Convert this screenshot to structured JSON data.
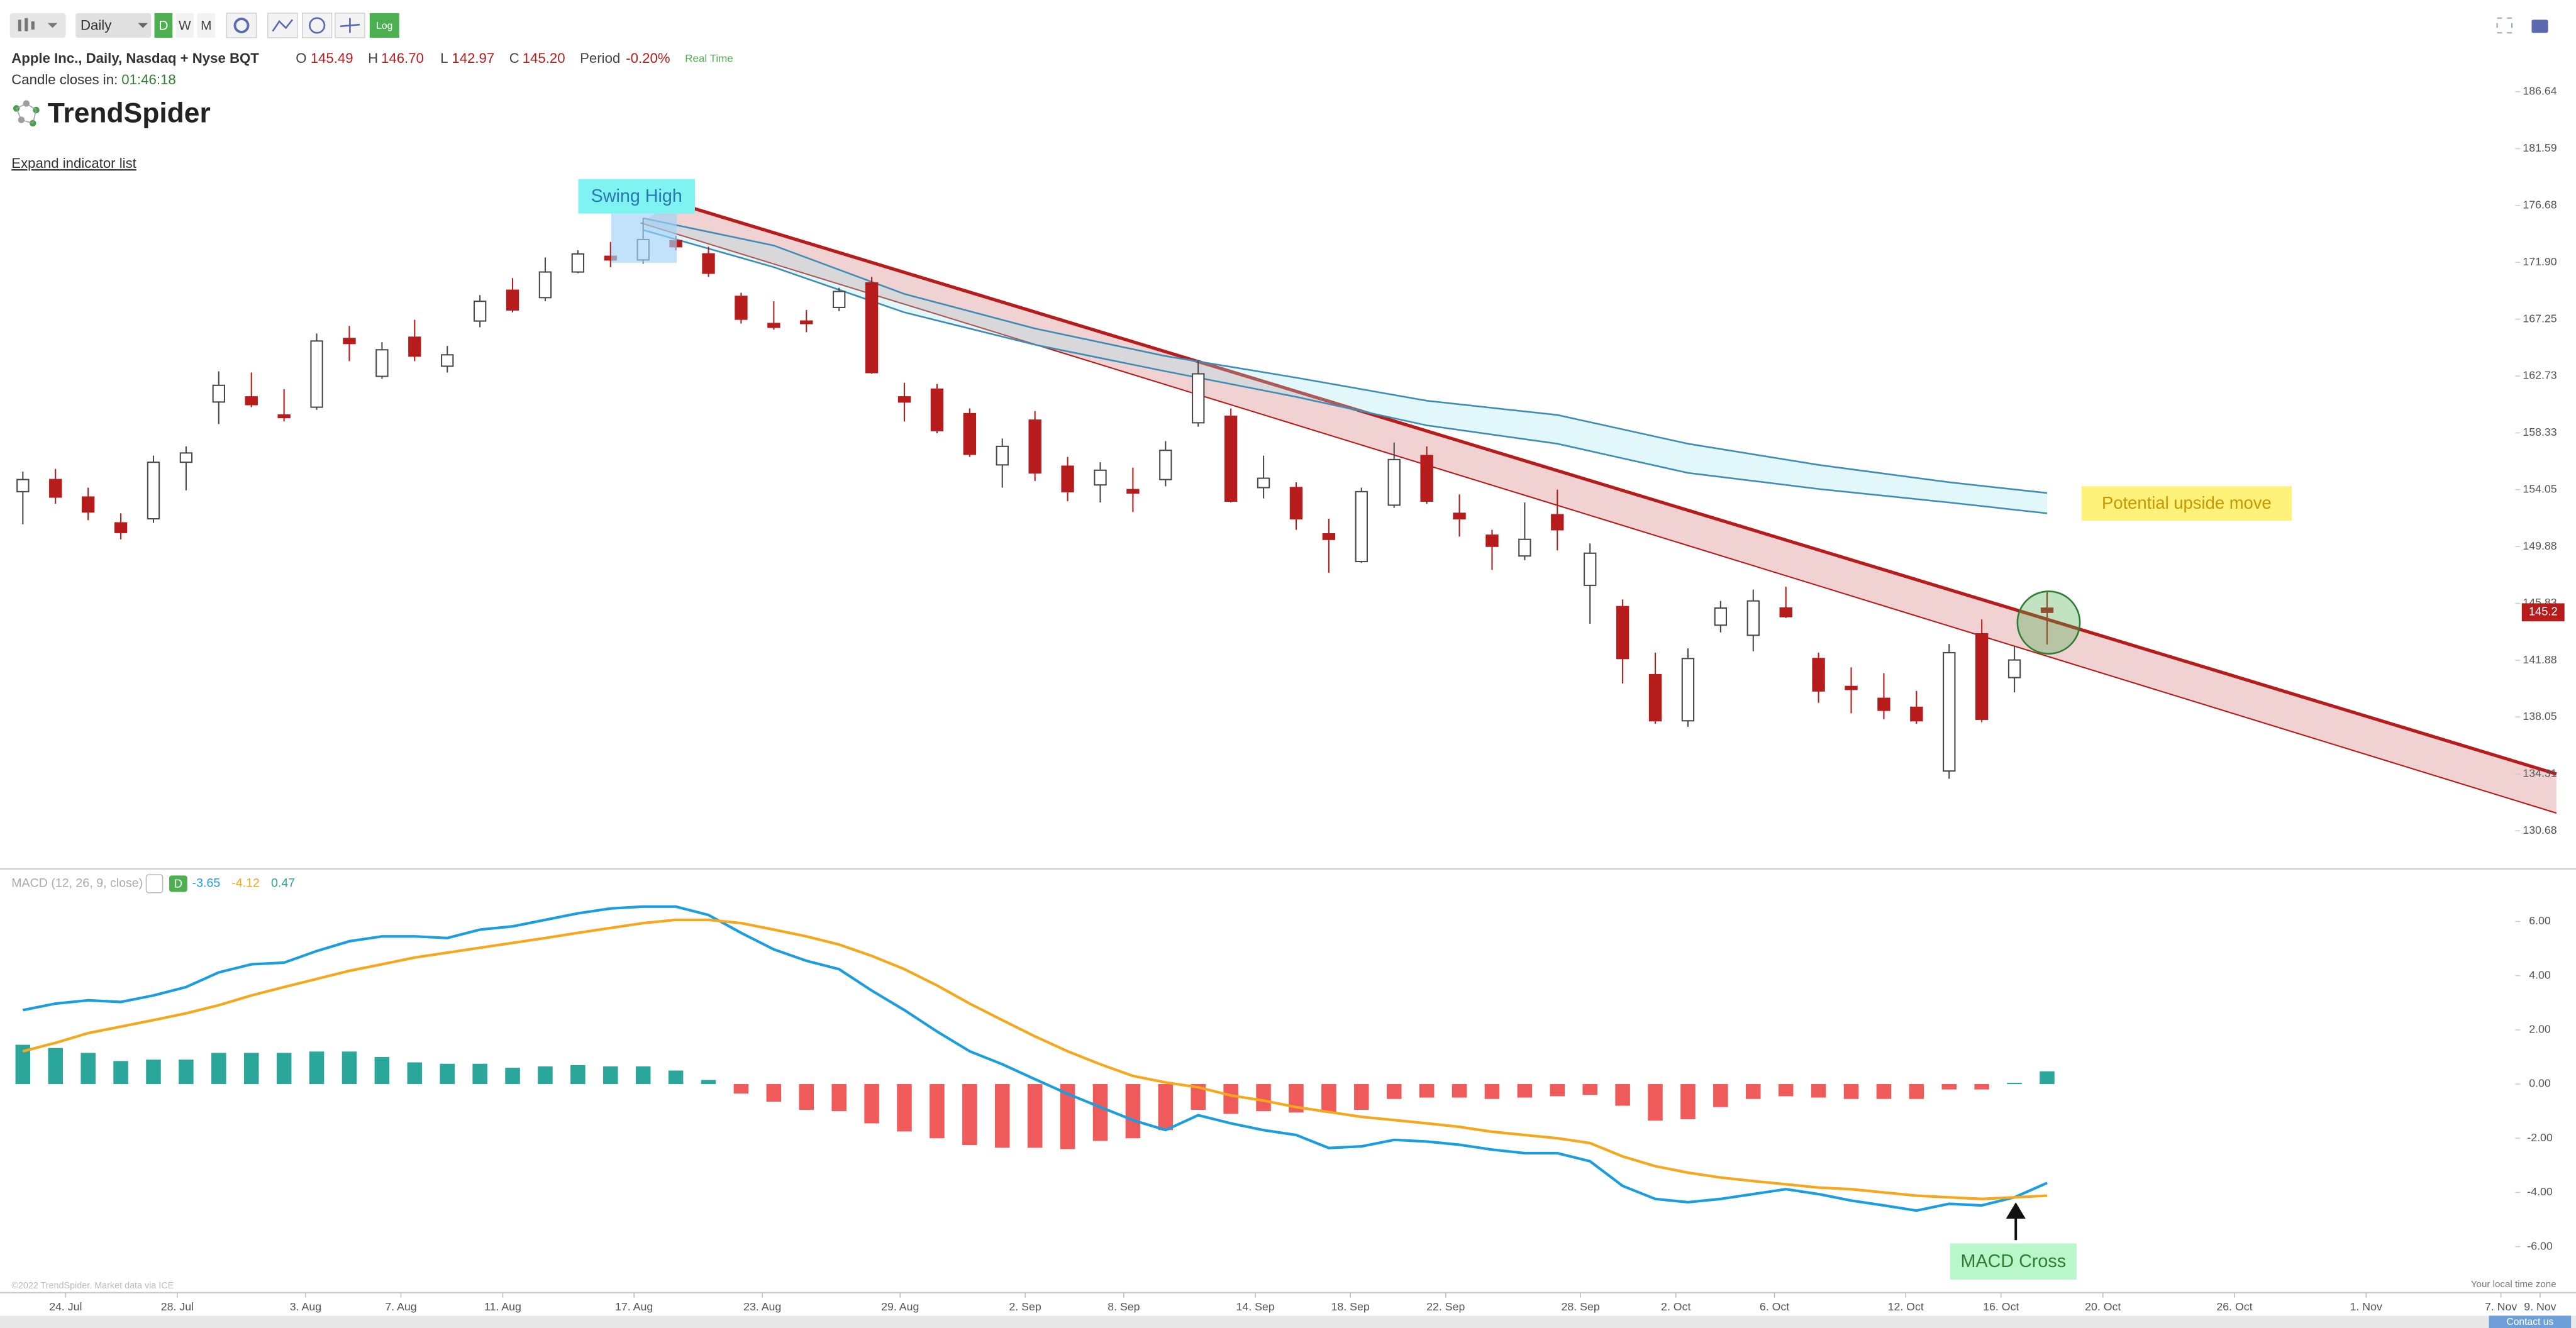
{
  "toolbar": {
    "interval": "Daily",
    "buttons": [
      "D",
      "W",
      "M"
    ],
    "log_button": "Log"
  },
  "header": {
    "symbol": "Apple Inc., Daily, Nasdaq + Nyse BQT",
    "ohlc": [
      {
        "key": "O",
        "value": "145.49"
      },
      {
        "key": "H",
        "value": "146.70"
      },
      {
        "key": "L",
        "value": "142.97"
      },
      {
        "key": "C",
        "value": "145.20"
      }
    ],
    "period_label": "Period",
    "period_value": "-0.20%",
    "realtime": "Real Time",
    "countdown_label": "Candle closes in:",
    "countdown": "01:46:18",
    "brand": "TrendSpider",
    "expand": "Expand indicator list"
  },
  "annotations": {
    "swing_high": "Swing High",
    "upside": "Potential upside move",
    "macd_cross": "MACD Cross"
  },
  "chart_data": [
    {
      "type": "candlestick",
      "log": true,
      "grid": false,
      "open": [
        153.9,
        154.8,
        153.5,
        151.6,
        151.9,
        156.1,
        160.7,
        161.1,
        159.7,
        160.3,
        165.7,
        162.7,
        165.8,
        163.5,
        167.1,
        169.6,
        169.0,
        171.1,
        172.4,
        172.1,
        173.7,
        172.6,
        169.1,
        166.9,
        167.1,
        168.2,
        170.2,
        161.1,
        161.7,
        159.8,
        155.9,
        159.3,
        155.8,
        154.4,
        154.05,
        154.8,
        159.1,
        159.6,
        154.2,
        154.2,
        150.8,
        148.8,
        152.9,
        156.6,
        152.3,
        150.7,
        149.2,
        152.2,
        147.1,
        145.6,
        140.9,
        137.8,
        144.3,
        143.6,
        145.5,
        142.0,
        140.1,
        139.3,
        138.7,
        134.5,
        143.7,
        140.7,
        145.49
      ],
      "high": [
        155.4,
        155.6,
        154.2,
        152.3,
        156.6,
        157.3,
        163.1,
        163.0,
        161.7,
        166.1,
        166.7,
        165.4,
        167.2,
        165.1,
        169.2,
        170.6,
        172.3,
        172.9,
        173.6,
        175.6,
        174.1,
        173.2,
        169.4,
        168.7,
        168.0,
        169.8,
        170.7,
        162.2,
        162.1,
        160.2,
        157.9,
        160.0,
        156.5,
        156.1,
        155.7,
        157.7,
        164.0,
        160.2,
        156.6,
        154.6,
        151.9,
        154.2,
        157.6,
        157.3,
        153.7,
        151.1,
        153.1,
        154.05,
        150.1,
        146.1,
        142.4,
        142.7,
        146.0,
        146.8,
        147.0,
        142.4,
        141.4,
        141.0,
        139.8,
        143.0,
        144.7,
        142.9,
        146.7
      ],
      "low": [
        151.5,
        153.0,
        151.8,
        150.4,
        151.6,
        154.0,
        159.0,
        160.3,
        159.2,
        160.1,
        163.9,
        162.5,
        163.9,
        163.0,
        166.6,
        167.8,
        168.7,
        171.0,
        171.5,
        171.8,
        172.9,
        170.7,
        166.9,
        166.4,
        166.2,
        167.9,
        162.9,
        159.2,
        158.3,
        156.5,
        154.2,
        154.7,
        153.2,
        153.1,
        152.4,
        154.3,
        158.8,
        153.1,
        153.4,
        151.1,
        148.0,
        148.7,
        152.7,
        153.0,
        150.6,
        148.2,
        148.9,
        149.6,
        144.4,
        140.3,
        137.6,
        137.4,
        143.8,
        142.5,
        144.8,
        139.0,
        138.3,
        137.9,
        137.6,
        134.0,
        137.7,
        139.7,
        142.97
      ],
      "close": [
        154.8,
        153.5,
        152.4,
        150.9,
        156.1,
        156.8,
        162.0,
        160.5,
        159.5,
        165.5,
        165.3,
        164.8,
        164.3,
        164.4,
        168.7,
        168.0,
        171.1,
        172.6,
        172.1,
        173.8,
        173.2,
        171.0,
        167.25,
        166.6,
        166.9,
        169.5,
        163.0,
        160.7,
        158.5,
        156.7,
        157.3,
        155.3,
        153.9,
        155.5,
        153.8,
        157.0,
        162.9,
        153.2,
        154.9,
        151.9,
        150.4,
        153.9,
        156.3,
        153.2,
        151.9,
        149.9,
        150.4,
        151.1,
        149.4,
        142.0,
        137.8,
        142.0,
        145.5,
        146.0,
        144.9,
        139.8,
        139.9,
        138.5,
        137.8,
        142.4,
        137.9,
        141.9,
        145.2
      ],
      "up_color": "#ffffff",
      "down_color": "#b71c1c",
      "xlim": [
        -0.7,
        78.2
      ],
      "ylim": [
        128.4,
        189.0
      ],
      "yticks": [
        186.64,
        181.59,
        176.68,
        {
          "value": 171.9,
          "label": "171.90"
        },
        167.25,
        162.73,
        158.33,
        154.05,
        149.88,
        145.83,
        141.88,
        138.05,
        134.31,
        130.68
      ],
      "last_price": {
        "value": 145.2,
        "label": "145.2"
      },
      "trendlines": [
        {
          "x": [
            19.93,
            77.6
          ],
          "y": [
            176.95,
            134.31
          ]
        },
        {
          "x": [
            18.92,
            77.6
          ],
          "y": [
            175.2,
            131.8
          ]
        }
      ],
      "channel_color": "#b71c1c",
      "bands": [
        {
          "x": [
            19,
            23,
            27,
            31,
            35,
            39,
            43,
            47,
            51,
            55,
            59,
            62
          ],
          "values": [
            175.6,
            173.3,
            169.3,
            166.5,
            164.3,
            162.6,
            160.8,
            159.7,
            157.5,
            155.9,
            154.6,
            153.8
          ]
        },
        {
          "x": [
            19,
            23,
            27,
            31,
            35,
            39,
            43,
            47,
            51,
            55,
            59,
            62
          ],
          "values": [
            174.6,
            171.5,
            167.8,
            165.2,
            163.1,
            161.1,
            158.9,
            157.5,
            155.3,
            154.1,
            153.1,
            152.3
          ]
        }
      ],
      "band_color": "#3f8db5"
    },
    {
      "type": "macd",
      "title": "MACD (12, 26, 9, close)",
      "badge": "D",
      "readouts": [
        "-3.65",
        "-4.12",
        "0.47"
      ],
      "series": [
        {
          "color": "#1a9ee0",
          "values": [
            2.73,
            2.97,
            3.09,
            3.03,
            3.27,
            3.58,
            4.12,
            4.42,
            4.48,
            4.91,
            5.27,
            5.45,
            5.45,
            5.39,
            5.7,
            5.82,
            6.06,
            6.3,
            6.48,
            6.55,
            6.55,
            6.24,
            5.58,
            4.97,
            4.55,
            4.24,
            3.45,
            2.73,
            1.94,
            1.21,
            0.73,
            0.18,
            -0.36,
            -0.85,
            -1.33,
            -1.7,
            -1.15,
            -1.45,
            -1.7,
            -1.88,
            -2.36,
            -2.3,
            -2.06,
            -2.12,
            -2.24,
            -2.42,
            -2.55,
            -2.55,
            -2.85,
            -3.76,
            -4.24,
            -4.36,
            -4.24,
            -4.06,
            -3.88,
            -4.06,
            -4.3,
            -4.48,
            -4.67,
            -4.42,
            -4.48,
            -4.18,
            -3.65
          ]
        },
        {
          "color": "#f5a81c",
          "values": [
            1.21,
            1.52,
            1.88,
            2.12,
            2.36,
            2.61,
            2.91,
            3.27,
            3.58,
            3.88,
            4.18,
            4.42,
            4.67,
            4.85,
            5.03,
            5.21,
            5.39,
            5.58,
            5.76,
            5.94,
            6.06,
            6.06,
            5.94,
            5.7,
            5.45,
            5.15,
            4.73,
            4.24,
            3.64,
            2.97,
            2.36,
            1.76,
            1.21,
            0.73,
            0.3,
            0.06,
            -0.12,
            -0.42,
            -0.61,
            -0.85,
            -1.03,
            -1.21,
            -1.33,
            -1.45,
            -1.58,
            -1.76,
            -1.88,
            -2.0,
            -2.18,
            -2.67,
            -3.03,
            -3.27,
            -3.45,
            -3.58,
            -3.7,
            -3.82,
            -3.88,
            -4.0,
            -4.12,
            -4.18,
            -4.24,
            -4.18,
            -4.12
          ]
        }
      ],
      "histogram": {
        "pos_color": "#2ba69a",
        "neg_color": "#ef5a5a",
        "values": [
          1.45,
          1.33,
          1.15,
          0.85,
          0.9,
          0.9,
          1.15,
          1.15,
          1.15,
          1.2,
          1.2,
          1.0,
          0.8,
          0.75,
          0.75,
          0.6,
          0.65,
          0.7,
          0.65,
          0.65,
          0.5,
          0.15,
          -0.35,
          -0.65,
          -0.95,
          -1.0,
          -1.45,
          -1.75,
          -2.0,
          -2.25,
          -2.35,
          -2.35,
          -2.4,
          -2.1,
          -2.0,
          -1.7,
          -0.95,
          -1.1,
          -1.0,
          -1.05,
          -1.05,
          -0.95,
          -0.55,
          -0.5,
          -0.5,
          -0.55,
          -0.5,
          -0.45,
          -0.4,
          -0.8,
          -1.35,
          -1.3,
          -0.85,
          -0.55,
          -0.45,
          -0.5,
          -0.55,
          -0.55,
          -0.55,
          -0.2,
          -0.2,
          0.05,
          0.47
        ]
      },
      "ylim": [
        -7.7,
        7.88
      ],
      "yticks": [
        {
          "value": 6,
          "label": "6.00"
        },
        {
          "value": 4,
          "label": "4.00"
        },
        {
          "value": 2,
          "label": "2.00"
        },
        {
          "value": 0,
          "label": "0.00"
        },
        {
          "value": -2,
          "label": "-2.00"
        },
        {
          "value": -4,
          "label": "-4.00"
        },
        {
          "value": -6,
          "label": "-6.00"
        }
      ],
      "xticks": [
        {
          "value": 1.31,
          "label": "24. Jul"
        },
        {
          "value": 4.73,
          "label": "28. Jul"
        },
        {
          "value": 8.66,
          "label": "3. Aug"
        },
        {
          "value": 11.58,
          "label": "7. Aug"
        },
        {
          "value": 14.7,
          "label": "11. Aug"
        },
        {
          "value": 18.72,
          "label": "17. Aug"
        },
        {
          "value": 22.65,
          "label": "23. Aug"
        },
        {
          "value": 26.87,
          "label": "29. Aug"
        },
        {
          "value": 30.7,
          "label": "2. Sep"
        },
        {
          "value": 33.72,
          "label": "8. Sep"
        },
        {
          "value": 37.75,
          "label": "14. Sep"
        },
        {
          "value": 40.66,
          "label": "18. Sep"
        },
        {
          "value": 43.58,
          "label": "22. Sep"
        },
        {
          "value": 47.71,
          "label": "28. Sep"
        },
        {
          "value": 50.63,
          "label": "2. Oct"
        },
        {
          "value": 53.65,
          "label": "6. Oct"
        },
        {
          "value": 57.67,
          "label": "12. Oct"
        },
        {
          "value": 60.59,
          "label": "16. Oct"
        },
        {
          "value": 63.71,
          "label": "20. Oct"
        },
        {
          "value": 67.74,
          "label": "26. Oct"
        },
        {
          "value": 71.77,
          "label": "1. Nov"
        },
        {
          "value": 75.9,
          "label": "7. Nov"
        },
        {
          "value": 77.1,
          "label": "9. Nov"
        }
      ]
    }
  ],
  "footer": {
    "copyright": "©2022 TrendSpider. Market data via ICE",
    "timezone": "Your local time zone",
    "contact": "Contact us"
  }
}
